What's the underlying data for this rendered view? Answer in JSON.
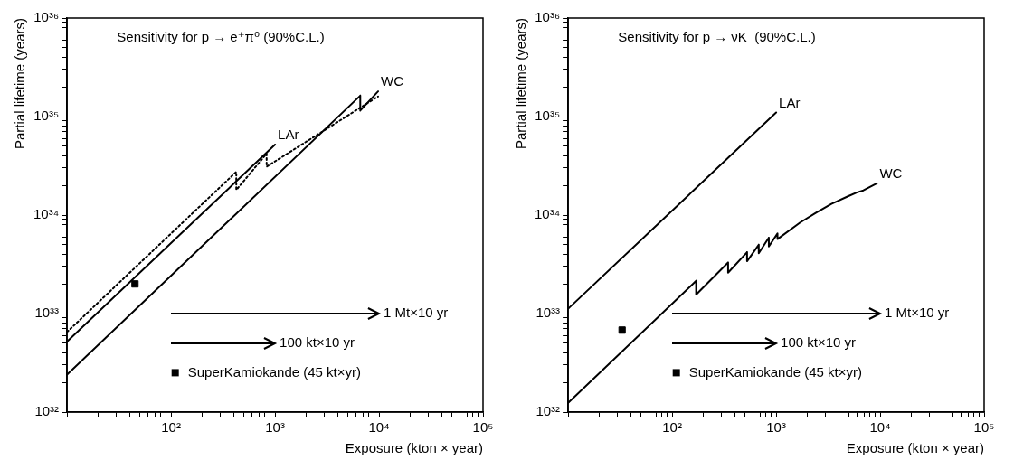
{
  "chart_data": [
    {
      "type": "line",
      "title": "Sensitivity for p → e⁺π⁰ (90%C.L.)",
      "xlabel": "Exposure (kton × year)",
      "ylabel": "Partial lifetime (years)",
      "log": "xy",
      "legend": "bottom",
      "xlim": [
        10,
        100000
      ],
      "ylim": [
        1e+32,
        1e+36
      ],
      "xticks": [
        {
          "value": 10,
          "label": null
        },
        {
          "value": 20,
          "label": null
        },
        {
          "value": 30,
          "label": null
        },
        {
          "value": 40,
          "label": null
        },
        {
          "value": 50,
          "label": null
        },
        {
          "value": 60,
          "label": null
        },
        {
          "value": 70,
          "label": null
        },
        {
          "value": 80,
          "label": null
        },
        {
          "value": 90,
          "label": null
        },
        {
          "value": 100,
          "label": "10²"
        },
        {
          "value": 200,
          "label": null
        },
        {
          "value": 300,
          "label": null
        },
        {
          "value": 400,
          "label": null
        },
        {
          "value": 500,
          "label": null
        },
        {
          "value": 600,
          "label": null
        },
        {
          "value": 700,
          "label": null
        },
        {
          "value": 800,
          "label": null
        },
        {
          "value": 900,
          "label": null
        },
        {
          "value": 1000,
          "label": "10³"
        },
        {
          "value": 2000,
          "label": null
        },
        {
          "value": 3000,
          "label": null
        },
        {
          "value": 4000,
          "label": null
        },
        {
          "value": 5000,
          "label": null
        },
        {
          "value": 6000,
          "label": null
        },
        {
          "value": 7000,
          "label": null
        },
        {
          "value": 8000,
          "label": null
        },
        {
          "value": 9000,
          "label": null
        },
        {
          "value": 10000,
          "label": "10⁴"
        },
        {
          "value": 20000,
          "label": null
        },
        {
          "value": 30000,
          "label": null
        },
        {
          "value": 40000,
          "label": null
        },
        {
          "value": 50000,
          "label": null
        },
        {
          "value": 60000,
          "label": null
        },
        {
          "value": 70000,
          "label": null
        },
        {
          "value": 80000,
          "label": null
        },
        {
          "value": 90000,
          "label": null
        },
        {
          "value": 100000,
          "label": "10⁵"
        }
      ],
      "yticks": [
        {
          "value": 1e+32,
          "label": "10³²"
        },
        {
          "value": 2e+32,
          "label": null
        },
        {
          "value": 3e+32,
          "label": null
        },
        {
          "value": 4e+32,
          "label": null
        },
        {
          "value": 5e+32,
          "label": null
        },
        {
          "value": 6e+32,
          "label": null
        },
        {
          "value": 7e+32,
          "label": null
        },
        {
          "value": 8e+32,
          "label": null
        },
        {
          "value": 9e+32,
          "label": null
        },
        {
          "value": 1e+33,
          "label": "10³³"
        },
        {
          "value": 2e+33,
          "label": null
        },
        {
          "value": 3e+33,
          "label": null
        },
        {
          "value": 4e+33,
          "label": null
        },
        {
          "value": 5e+33,
          "label": null
        },
        {
          "value": 6e+33,
          "label": null
        },
        {
          "value": 7e+33,
          "label": null
        },
        {
          "value": 8e+33,
          "label": null
        },
        {
          "value": 9e+33,
          "label": null
        },
        {
          "value": 1e+34,
          "label": "10³⁴"
        },
        {
          "value": 2e+34,
          "label": null
        },
        {
          "value": 3e+34,
          "label": null
        },
        {
          "value": 4e+34,
          "label": null
        },
        {
          "value": 5e+34,
          "label": null
        },
        {
          "value": 6e+34,
          "label": null
        },
        {
          "value": 7e+34,
          "label": null
        },
        {
          "value": 8e+34,
          "label": null
        },
        {
          "value": 9e+34,
          "label": null
        },
        {
          "value": 1e+35,
          "label": "10³⁵"
        },
        {
          "value": 2e+35,
          "label": null
        },
        {
          "value": 3e+35,
          "label": null
        },
        {
          "value": 4e+35,
          "label": null
        },
        {
          "value": 5e+35,
          "label": null
        },
        {
          "value": 6e+35,
          "label": null
        },
        {
          "value": 7e+35,
          "label": null
        },
        {
          "value": 8e+35,
          "label": null
        },
        {
          "value": 9e+35,
          "label": null
        },
        {
          "value": 1e+36,
          "label": "10³⁶"
        }
      ],
      "series": [
        {
          "name": "LAr",
          "color": "#000000",
          "line_style": "solid",
          "x": [
            10,
            1000
          ],
          "values": [
            5.2e+32,
            5.2e+34
          ]
        },
        {
          "color": "#000000",
          "line_style": "dotted",
          "x": [
            10,
            424,
            424,
            830,
            830,
            9800
          ],
          "values": [
            6.5e+32,
            2.75e+34,
            1.8e+34,
            4.2e+34,
            3.1e+34,
            1.6e+35
          ]
        },
        {
          "name": "WC",
          "color": "#000000",
          "line_style": "solid",
          "x": [
            10,
            6600,
            6600,
            9800
          ],
          "values": [
            2.4e+32,
            1.63e+35,
            1.15e+35,
            1.8e+35
          ]
        },
        {
          "name": "SuperKamiokande (45 kt×yr)",
          "type": "scatter",
          "marker": "square",
          "color": "#000000",
          "x": [
            45
          ],
          "values": [
            2e+33
          ]
        }
      ],
      "annotations": [
        "1 Mt×10 yr",
        "100 kt×10 yr"
      ]
    },
    {
      "type": "line",
      "title": "Sensitivity for p → νK  (90%C.L.)",
      "xlabel": "Exposure (kton × year)",
      "ylabel": "Partial lifetime (years)",
      "log": "xy",
      "legend": "bottom",
      "xlim": [
        10,
        100000
      ],
      "ylim": [
        1e+32,
        1e+36
      ],
      "xticks": [
        {
          "value": 10,
          "label": null
        },
        {
          "value": 20,
          "label": null
        },
        {
          "value": 30,
          "label": null
        },
        {
          "value": 40,
          "label": null
        },
        {
          "value": 50,
          "label": null
        },
        {
          "value": 60,
          "label": null
        },
        {
          "value": 70,
          "label": null
        },
        {
          "value": 80,
          "label": null
        },
        {
          "value": 90,
          "label": null
        },
        {
          "value": 100,
          "label": "10²"
        },
        {
          "value": 200,
          "label": null
        },
        {
          "value": 300,
          "label": null
        },
        {
          "value": 400,
          "label": null
        },
        {
          "value": 500,
          "label": null
        },
        {
          "value": 600,
          "label": null
        },
        {
          "value": 700,
          "label": null
        },
        {
          "value": 800,
          "label": null
        },
        {
          "value": 900,
          "label": null
        },
        {
          "value": 1000,
          "label": "10³"
        },
        {
          "value": 2000,
          "label": null
        },
        {
          "value": 3000,
          "label": null
        },
        {
          "value": 4000,
          "label": null
        },
        {
          "value": 5000,
          "label": null
        },
        {
          "value": 6000,
          "label": null
        },
        {
          "value": 7000,
          "label": null
        },
        {
          "value": 8000,
          "label": null
        },
        {
          "value": 9000,
          "label": null
        },
        {
          "value": 10000,
          "label": "10⁴"
        },
        {
          "value": 20000,
          "label": null
        },
        {
          "value": 30000,
          "label": null
        },
        {
          "value": 40000,
          "label": null
        },
        {
          "value": 50000,
          "label": null
        },
        {
          "value": 60000,
          "label": null
        },
        {
          "value": 70000,
          "label": null
        },
        {
          "value": 80000,
          "label": null
        },
        {
          "value": 90000,
          "label": null
        },
        {
          "value": 100000,
          "label": "10⁵"
        }
      ],
      "yticks": [
        {
          "value": 1e+32,
          "label": "10³²"
        },
        {
          "value": 2e+32,
          "label": null
        },
        {
          "value": 3e+32,
          "label": null
        },
        {
          "value": 4e+32,
          "label": null
        },
        {
          "value": 5e+32,
          "label": null
        },
        {
          "value": 6e+32,
          "label": null
        },
        {
          "value": 7e+32,
          "label": null
        },
        {
          "value": 8e+32,
          "label": null
        },
        {
          "value": 9e+32,
          "label": null
        },
        {
          "value": 1e+33,
          "label": "10³³"
        },
        {
          "value": 2e+33,
          "label": null
        },
        {
          "value": 3e+33,
          "label": null
        },
        {
          "value": 4e+33,
          "label": null
        },
        {
          "value": 5e+33,
          "label": null
        },
        {
          "value": 6e+33,
          "label": null
        },
        {
          "value": 7e+33,
          "label": null
        },
        {
          "value": 8e+33,
          "label": null
        },
        {
          "value": 9e+33,
          "label": null
        },
        {
          "value": 1e+34,
          "label": "10³⁴"
        },
        {
          "value": 2e+34,
          "label": null
        },
        {
          "value": 3e+34,
          "label": null
        },
        {
          "value": 4e+34,
          "label": null
        },
        {
          "value": 5e+34,
          "label": null
        },
        {
          "value": 6e+34,
          "label": null
        },
        {
          "value": 7e+34,
          "label": null
        },
        {
          "value": 8e+34,
          "label": null
        },
        {
          "value": 9e+34,
          "label": null
        },
        {
          "value": 1e+35,
          "label": "10³⁵"
        },
        {
          "value": 2e+35,
          "label": null
        },
        {
          "value": 3e+35,
          "label": null
        },
        {
          "value": 4e+35,
          "label": null
        },
        {
          "value": 5e+35,
          "label": null
        },
        {
          "value": 6e+35,
          "label": null
        },
        {
          "value": 7e+35,
          "label": null
        },
        {
          "value": 8e+35,
          "label": null
        },
        {
          "value": 9e+35,
          "label": null
        },
        {
          "value": 1e+36,
          "label": "10³⁶"
        }
      ],
      "series": [
        {
          "name": "LAr",
          "color": "#000000",
          "line_style": "solid",
          "x": [
            10,
            1000
          ],
          "values": [
            1.12e+33,
            1.1e+35
          ]
        },
        {
          "name": "WC",
          "color": "#000000",
          "line_style": "solid",
          "x": [
            10,
            170,
            170,
            345,
            345,
            525,
            525,
            680,
            680,
            850,
            850,
            1030,
            1030,
            1700,
            2400,
            3400,
            4900,
            6000,
            6900,
            9300
          ],
          "values": [
            1.24e+32,
            2.15e+33,
            1.56e+33,
            3.3e+33,
            2.6e+33,
            4.2e+33,
            3.4e+33,
            5e+33,
            4.1e+33,
            5.9e+33,
            4.8e+33,
            6.5e+33,
            5.7e+33,
            8.4e+33,
            1.05e+34,
            1.3e+34,
            1.55e+34,
            1.7e+34,
            1.78e+34,
            2.1e+34
          ]
        },
        {
          "name": "SuperKamiokande (45 kt×yr)",
          "type": "scatter",
          "marker": "square",
          "color": "#000000",
          "x": [
            33
          ],
          "values": [
            6.8e+32
          ]
        }
      ],
      "annotations": [
        "1 Mt×10 yr",
        "100 kt×10 yr"
      ]
    }
  ]
}
